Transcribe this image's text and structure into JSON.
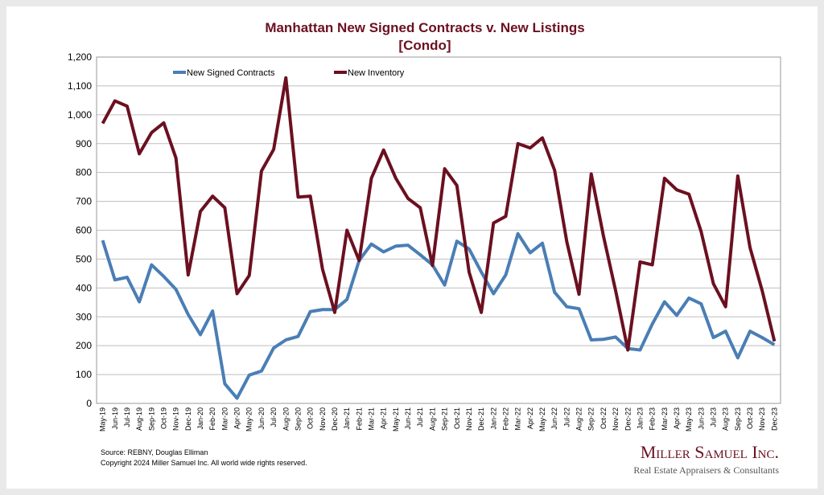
{
  "chart_data": {
    "type": "line",
    "title": "Manhattan New Signed Contracts v. New Listings",
    "subtitle": "[Condo]",
    "categories": [
      "May-19",
      "Jun-19",
      "Jul-19",
      "Aug-19",
      "Sep-19",
      "Oct-19",
      "Nov-19",
      "Dec-19",
      "Jan-20",
      "Feb-20",
      "Mar-20",
      "Apr-20",
      "May-20",
      "Jun-20",
      "Jul-20",
      "Aug-20",
      "Sep-20",
      "Oct-20",
      "Nov-20",
      "Dec-20",
      "Jan-21",
      "Feb-21",
      "Mar-21",
      "Apr-21",
      "May-21",
      "Jun-21",
      "Jul-21",
      "Aug-21",
      "Sep-21",
      "Oct-21",
      "Nov-21",
      "Dec-21",
      "Jan-22",
      "Feb-22",
      "Mar-22",
      "Apr-22",
      "May-22",
      "Jun-22",
      "Jul-22",
      "Aug-22",
      "Sep-22",
      "Oct-22",
      "Nov-22",
      "Dec-22",
      "Jan-23",
      "Feb-23",
      "Mar-23",
      "Apr-23",
      "May-23",
      "Jun-23",
      "Jul-23",
      "Aug-23",
      "Sep-23",
      "Oct-23",
      "Nov-23",
      "Dec-23"
    ],
    "series": [
      {
        "name": "New Signed Contracts",
        "color": "#4a7eb5",
        "values": [
          565,
          428,
          437,
          352,
          480,
          440,
          395,
          308,
          238,
          320,
          68,
          18,
          98,
          112,
          192,
          220,
          232,
          318,
          325,
          325,
          360,
          495,
          552,
          525,
          545,
          548,
          515,
          480,
          410,
          562,
          535,
          455,
          380,
          445,
          588,
          522,
          555,
          385,
          335,
          328,
          220,
          222,
          230,
          190,
          185,
          275,
          352,
          305,
          365,
          345,
          228,
          250,
          158,
          250,
          228,
          203
        ]
      },
      {
        "name": "New Inventory",
        "color": "#6b1020",
        "values": [
          970,
          1048,
          1030,
          865,
          938,
          972,
          850,
          445,
          665,
          718,
          678,
          380,
          443,
          805,
          880,
          1128,
          715,
          718,
          465,
          315,
          600,
          495,
          780,
          878,
          780,
          710,
          678,
          478,
          813,
          755,
          455,
          315,
          625,
          648,
          900,
          885,
          920,
          808,
          560,
          378,
          795,
          580,
          390,
          185,
          490,
          480,
          780,
          740,
          725,
          595,
          415,
          335,
          788,
          540,
          390,
          215
        ]
      }
    ],
    "ylim": [
      0,
      1200
    ],
    "yticks": [
      0,
      100,
      200,
      300,
      400,
      500,
      600,
      700,
      800,
      900,
      {
        "value": 1000,
        "label": "1,000"
      },
      {
        "value": 1100,
        "label": "1,100"
      },
      {
        "value": 1200,
        "label": "1,200"
      }
    ],
    "grid": true,
    "legend": "top"
  },
  "footer": {
    "source": "Source: REBNY, Douglas Elliman",
    "copyright": "Copyright 2024 Miller Samuel Inc.  All world wide rights reserved.",
    "brand": "Miller Samuel Inc.",
    "tagline": "Real Estate Appraisers & Consultants"
  }
}
